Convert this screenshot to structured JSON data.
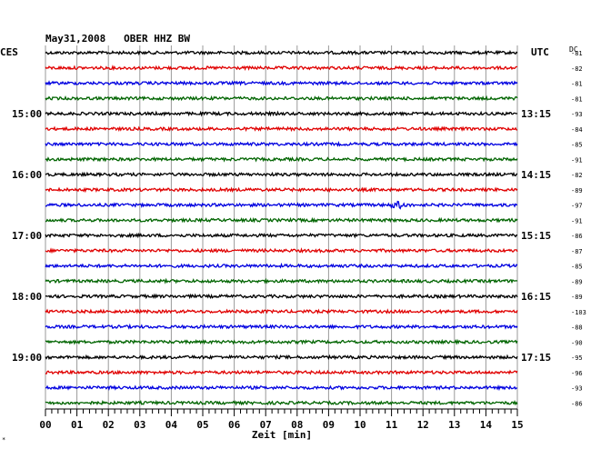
{
  "chart_data": {
    "type": "line",
    "title": "May31,2008   OBER HHZ BW",
    "left_timezone": "CES",
    "right_timezone": "UTC",
    "dc_header": "DC",
    "xlabel": "Zeit [min]",
    "xlim": [
      0,
      15
    ],
    "x_ticks": [
      "00",
      "01",
      "02",
      "03",
      "04",
      "05",
      "06",
      "07",
      "08",
      "09",
      "10",
      "11",
      "12",
      "13",
      "14",
      "15"
    ],
    "grid": true,
    "trace_count": 24,
    "trace_colors": [
      "#000000",
      "#e00000",
      "#0000e0",
      "#006400"
    ],
    "left_hour_labels": [
      {
        "trace": 4,
        "label": "15:00"
      },
      {
        "trace": 8,
        "label": "16:00"
      },
      {
        "trace": 12,
        "label": "17:00"
      },
      {
        "trace": 16,
        "label": "18:00"
      },
      {
        "trace": 20,
        "label": "19:00"
      }
    ],
    "right_hour_labels": [
      {
        "trace": 4,
        "label": "13:15"
      },
      {
        "trace": 8,
        "label": "14:15"
      },
      {
        "trace": 12,
        "label": "15:15"
      },
      {
        "trace": 16,
        "label": "16:15"
      },
      {
        "trace": 20,
        "label": "17:15"
      }
    ],
    "dc_offsets": [
      "-81",
      "-82",
      "-81",
      "-81",
      "-93",
      "-84",
      "-85",
      "-91",
      "-82",
      "-89",
      "-97",
      "-91",
      "-86",
      "-87",
      "-85",
      "-89",
      "-89",
      "-103",
      "-88",
      "-90",
      "-95",
      "-96",
      "-93",
      "-86"
    ],
    "events": [
      {
        "trace": 10,
        "minute": 11.2,
        "note": "small burst"
      }
    ]
  }
}
